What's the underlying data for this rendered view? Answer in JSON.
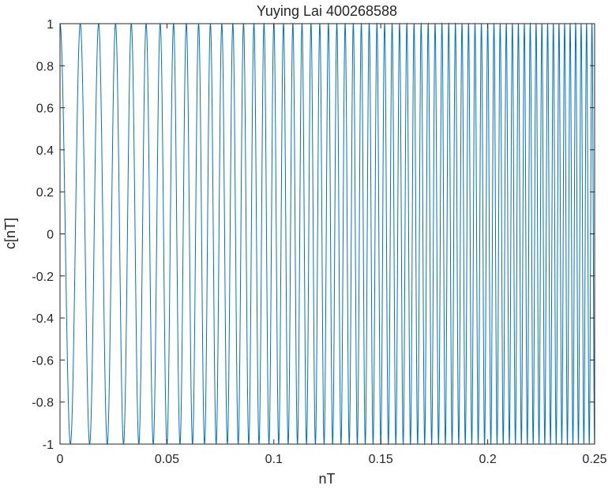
{
  "chart_data": {
    "type": "line",
    "title": "Yuying Lai 400268588",
    "xlabel": "nT",
    "ylabel": "c[nT]",
    "xlim": [
      0,
      0.25
    ],
    "ylim": [
      -1,
      1
    ],
    "xticks": [
      0,
      0.05,
      0.1,
      0.15,
      0.2,
      0.25
    ],
    "xtick_labels": [
      "0",
      "0.05",
      "0.1",
      "0.15",
      "0.2",
      "0.25"
    ],
    "yticks": [
      -1,
      -0.8,
      -0.6,
      -0.4,
      -0.2,
      0,
      0.2,
      0.4,
      0.6,
      0.8,
      1
    ],
    "ytick_labels": [
      "-1",
      "-0.8",
      "-0.6",
      "-0.4",
      "-0.2",
      "0",
      "0.2",
      "0.4",
      "0.6",
      "0.8",
      "1"
    ],
    "grid": false,
    "series": [
      {
        "function": "cos(2*pi*(f0*t + 0.5*k*t^2))",
        "f0": 100,
        "k": 1200,
        "t_start": 0,
        "t_end": 0.25,
        "color": "#0072bd"
      }
    ]
  }
}
